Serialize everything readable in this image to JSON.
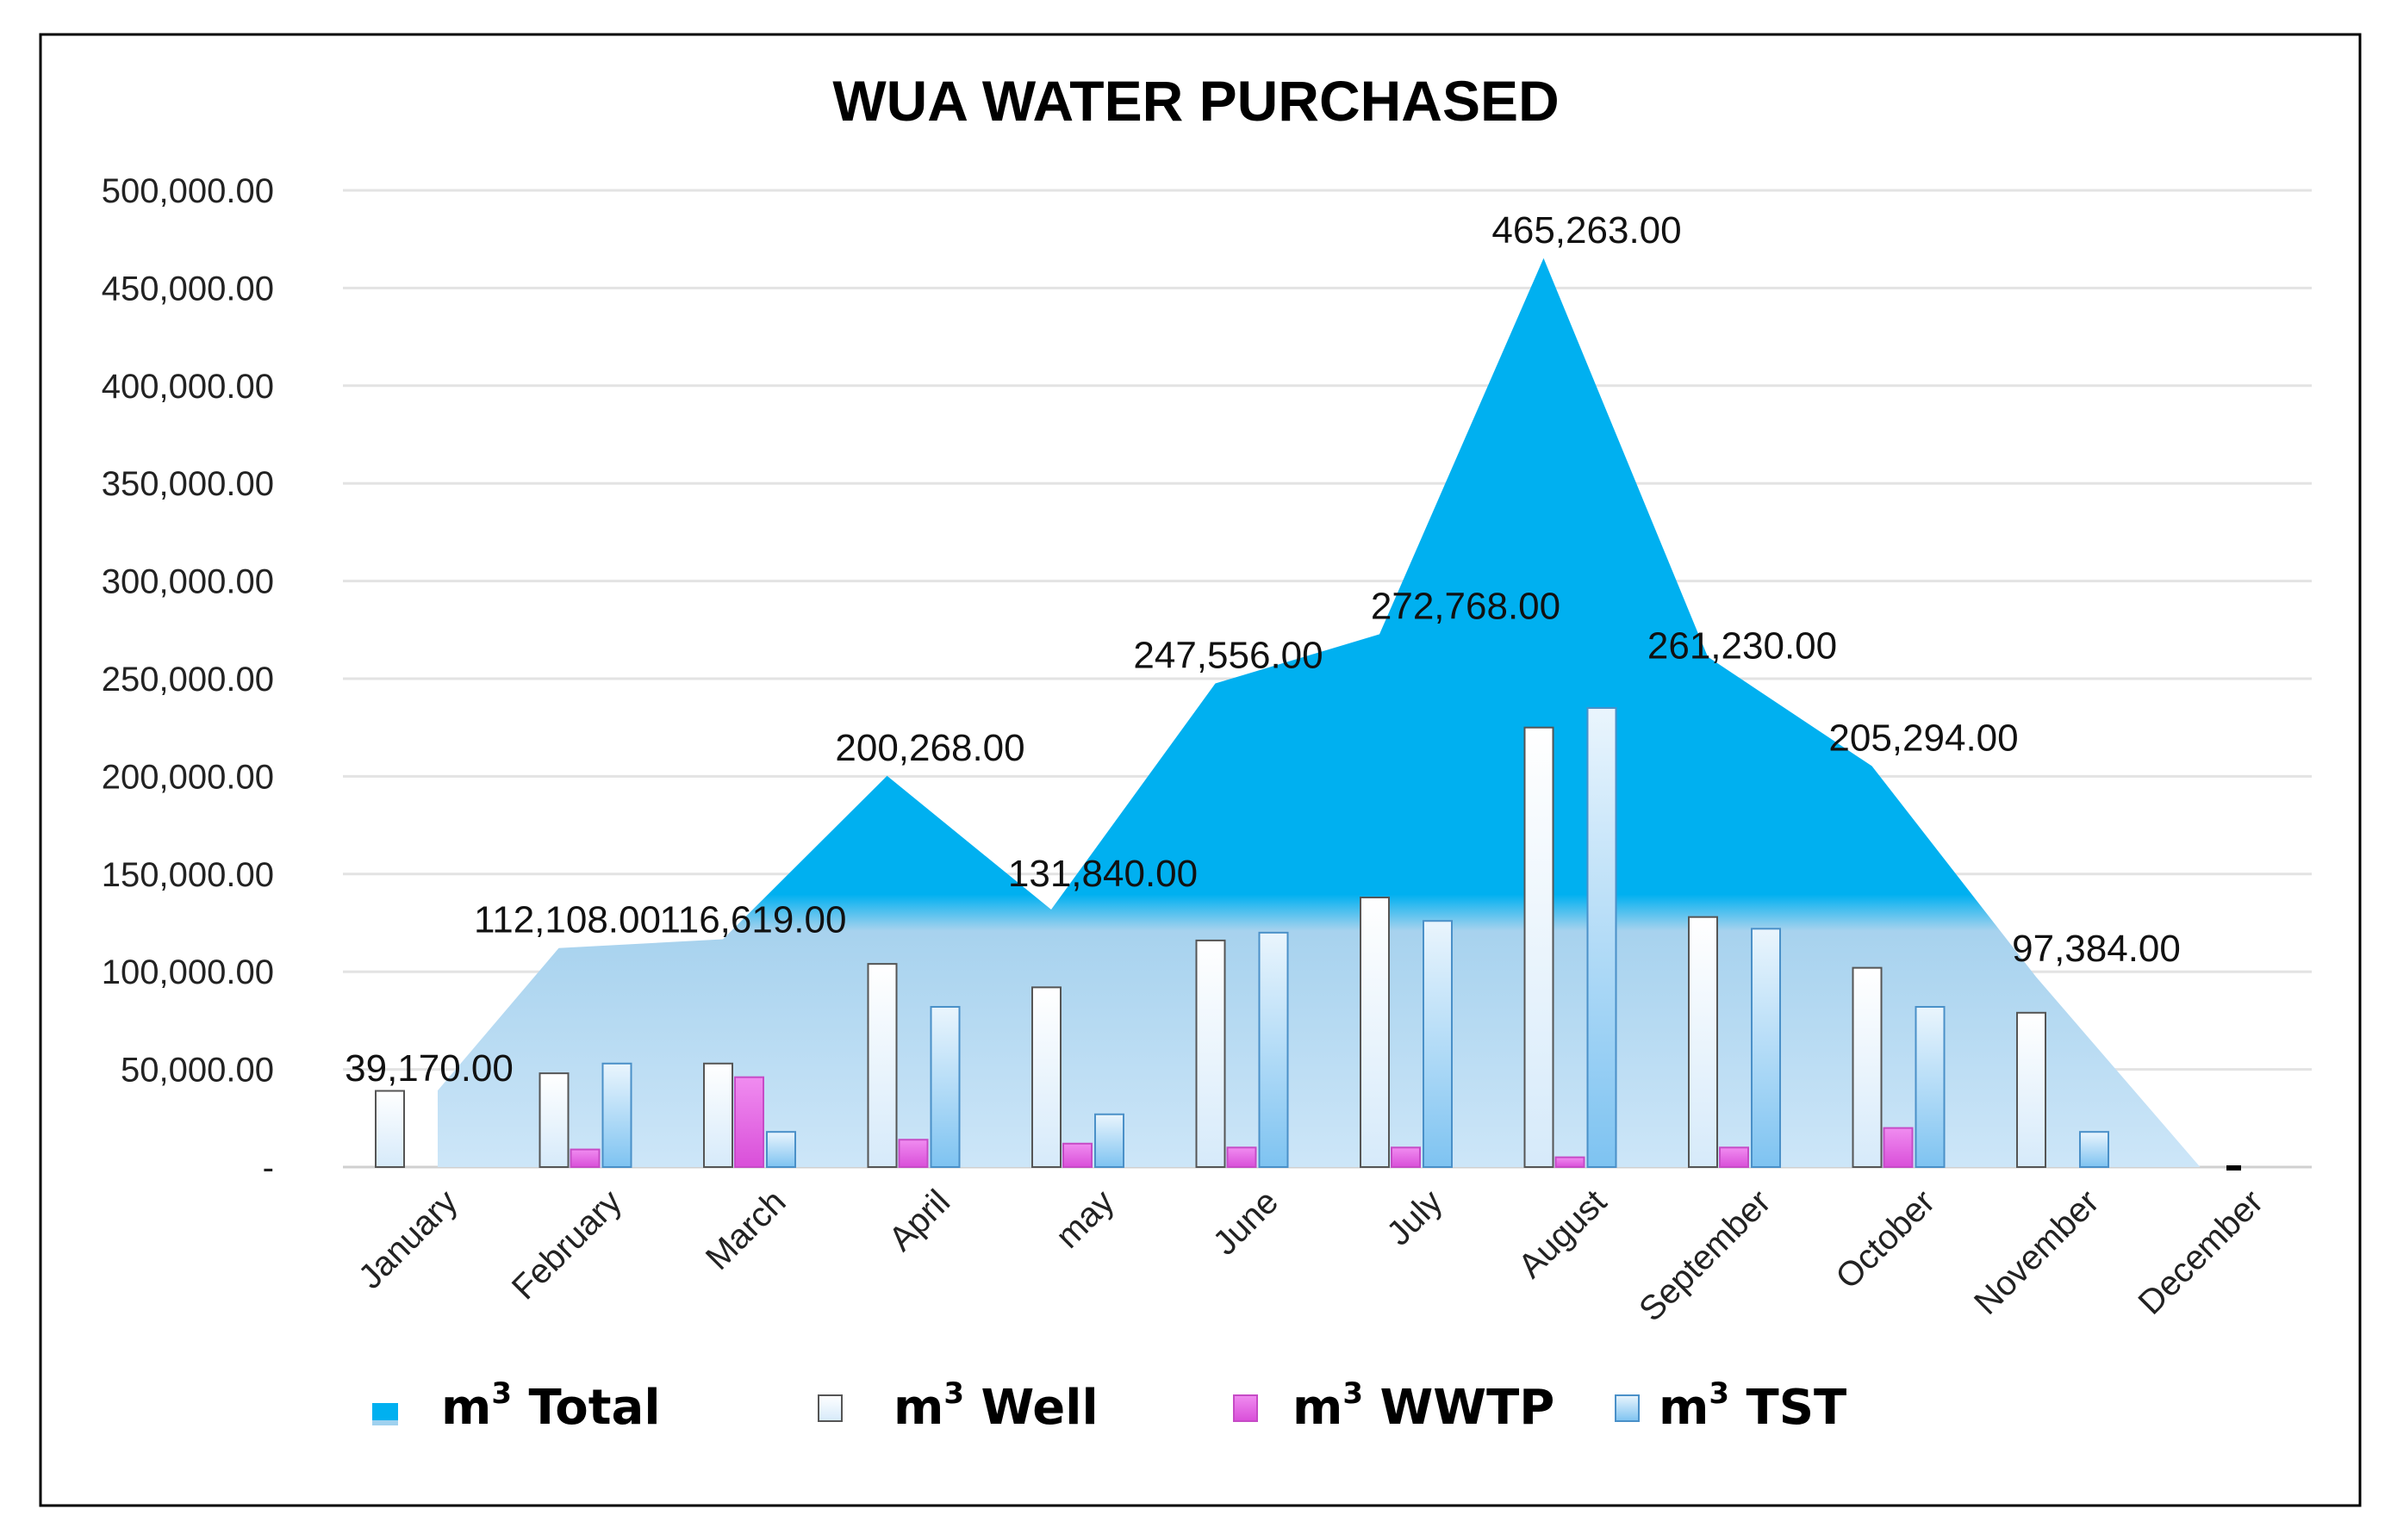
{
  "chart_data": {
    "type": "bar",
    "title": "WUA WATER PURCHASED",
    "xlabel": "",
    "ylabel": "",
    "ylim": [
      0,
      500000
    ],
    "yticks": [
      0,
      50000,
      100000,
      150000,
      200000,
      250000,
      300000,
      350000,
      400000,
      450000,
      500000
    ],
    "ytick_labels": [
      "-",
      "50,000.00",
      "100,000.00",
      "150,000.00",
      "200,000.00",
      "250,000.00",
      "300,000.00",
      "350,000.00",
      "400,000.00",
      "450,000.00",
      "500,000.00"
    ],
    "categories": [
      "January",
      "February",
      "March",
      "April",
      "may",
      "June",
      "July",
      "August",
      "September",
      "October",
      "November",
      "December"
    ],
    "series": [
      {
        "name": "m³ Total",
        "kind": "area",
        "color": "#00b0f0",
        "values": [
          39170,
          112108,
          116619,
          200268,
          131840,
          247556,
          272768,
          465263,
          261230,
          205294,
          97384,
          0
        ],
        "labels": [
          "39,170.00",
          "112,108.00",
          "116,619.00",
          "200,268.00",
          "131,840.00",
          "247,556.00",
          "272,768.00",
          "465,263.00",
          "261,230.00",
          "205,294.00",
          "97,384.00",
          "-"
        ]
      },
      {
        "name": "m³ Well",
        "kind": "bar",
        "color": "#eef6fd",
        "values": [
          39000,
          48000,
          53000,
          104000,
          92000,
          116000,
          138000,
          225000,
          128000,
          102000,
          79000,
          0
        ]
      },
      {
        "name": "m³ WWTP",
        "kind": "bar",
        "color": "#e86ce8",
        "values": [
          0,
          9000,
          46000,
          14000,
          12000,
          10000,
          10000,
          5000,
          10000,
          20000,
          0,
          0
        ]
      },
      {
        "name": "m³ TST",
        "kind": "bar",
        "color": "#a9d4f5",
        "values": [
          0,
          53000,
          18000,
          82000,
          27000,
          120000,
          126000,
          235000,
          122000,
          82000,
          18000,
          0
        ]
      }
    ],
    "legend": {
      "position": "bottom",
      "items": [
        {
          "prefix": "m",
          "sup": "3",
          "name": " Total"
        },
        {
          "prefix": "m",
          "sup": "3",
          "name": " Well"
        },
        {
          "prefix": "m",
          "sup": "3",
          "name": " WWTP"
        },
        {
          "prefix": "m",
          "sup": "3",
          "name": " TST"
        }
      ]
    },
    "grid": true
  }
}
